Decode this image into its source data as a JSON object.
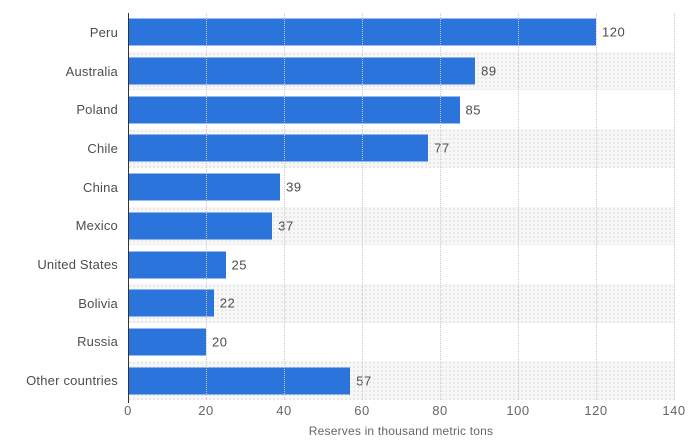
{
  "chart_data": {
    "type": "bar",
    "orientation": "horizontal",
    "categories": [
      "Peru",
      "Australia",
      "Poland",
      "Chile",
      "China",
      "Mexico",
      "United States",
      "Bolivia",
      "Russia",
      "Other countries"
    ],
    "values": [
      120,
      89,
      85,
      77,
      39,
      37,
      25,
      22,
      20,
      57
    ],
    "title": "",
    "xlabel": "Reserves in thousand metric tons",
    "ylabel": "",
    "xlim": [
      0,
      140
    ],
    "xticks": [
      0,
      20,
      40,
      60,
      80,
      100,
      120,
      140
    ],
    "grid": "vertical-dotted",
    "legend": "none",
    "bar_color": "#2b74db",
    "band_color": "#f2f2f2",
    "gridline_color": "#c9c9c9",
    "axis_line_color": "#333333",
    "label_color": "#4d4d4d",
    "tick_color": "#666666"
  }
}
